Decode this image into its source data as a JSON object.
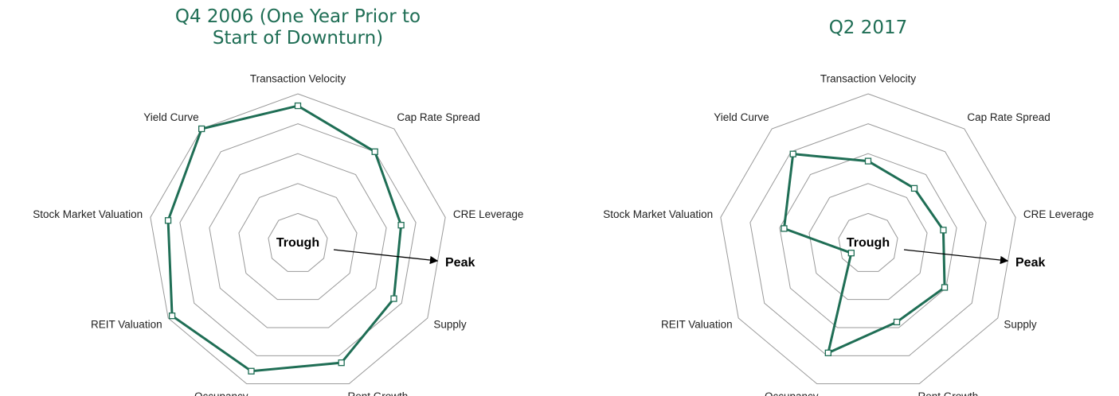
{
  "chart_data": [
    {
      "type": "radar",
      "title": "Q4 2006 (One Year Prior to Start of Downturn)",
      "categories": [
        "Transaction Velocity",
        "Cap Rate Spread",
        "CRE Leverage",
        "Supply",
        "Rent Growth",
        "Occupancy",
        "REIT Valuation",
        "Stock Market Valuation",
        "Yield Curve"
      ],
      "values": [
        4.6,
        4.0,
        3.5,
        3.7,
        4.25,
        4.55,
        4.85,
        4.4,
        5.0
      ],
      "color": "#1f6e55",
      "rlim": [
        0,
        5
      ],
      "rticks": [
        1,
        2,
        3,
        4,
        5
      ],
      "grid": true,
      "annotations": [
        "Trough",
        "Peak"
      ]
    },
    {
      "type": "radar",
      "title": "Q2 2017",
      "categories": [
        "Transaction Velocity",
        "Cap Rate Spread",
        "CRE Leverage",
        "Supply",
        "Rent Growth",
        "Occupancy",
        "REIT Valuation",
        "Stock Market Valuation",
        "Yield Curve"
      ],
      "values": [
        2.75,
        2.4,
        2.55,
        2.95,
        2.8,
        3.9,
        0.65,
        2.85,
        3.9
      ],
      "color": "#1f6e55",
      "rlim": [
        0,
        5
      ],
      "rticks": [
        1,
        2,
        3,
        4,
        5
      ],
      "grid": true,
      "annotations": [
        "Trough",
        "Peak"
      ]
    }
  ]
}
